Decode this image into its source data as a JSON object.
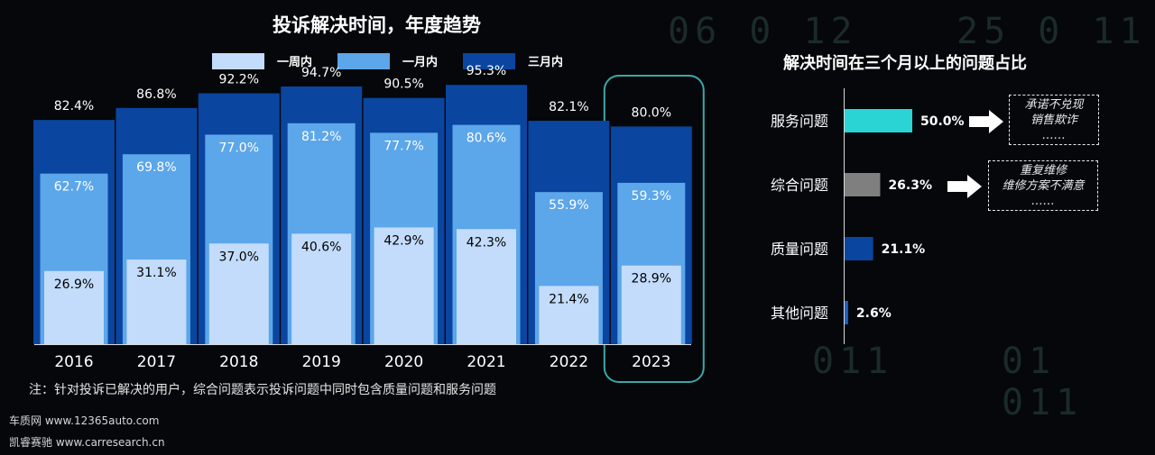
{
  "left_chart": {
    "title": "投诉解决时间，年度趋势",
    "legend": [
      {
        "label": "一周内",
        "color": "#c3dcfb"
      },
      {
        "label": "一月内",
        "color": "#5ca6ea"
      },
      {
        "label": "三月内",
        "color": "#0a45a0"
      }
    ],
    "highlight_category": "2023",
    "highlight_color": "#3aa8a8"
  },
  "right_chart": {
    "title": "解决时间在三个月以上的问题占比",
    "callouts": [
      {
        "lines": [
          "承诺不兑现",
          "销售欺诈",
          "……"
        ]
      },
      {
        "lines": [
          "重复维修",
          "维修方案不满意",
          "……"
        ]
      }
    ]
  },
  "note": "注：针对投诉已解决的用户，综合问题表示投诉问题中同时包含质量问题和服务问题",
  "sources": [
    "车质网 www.12365auto.com",
    "凯睿赛驰 www.carresearch.cn"
  ],
  "chart_data": [
    {
      "type": "bar",
      "title": "投诉解决时间，年度趋势",
      "categories": [
        "2016",
        "2017",
        "2018",
        "2019",
        "2020",
        "2021",
        "2022",
        "2023"
      ],
      "series": [
        {
          "name": "三月内",
          "values": [
            82.4,
            86.8,
            92.2,
            94.7,
            90.5,
            95.3,
            82.1,
            80.0
          ],
          "labels": [
            "82.4%",
            "86.8%",
            "92.2%",
            "94.7%",
            "90.5%",
            "95.3%",
            "82.1%",
            "80.0%"
          ]
        },
        {
          "name": "一月内",
          "values": [
            62.7,
            69.8,
            77.0,
            81.2,
            77.7,
            80.6,
            55.9,
            59.3
          ],
          "labels": [
            "62.7%",
            "69.8%",
            "77.0%",
            "81.2%",
            "77.7%",
            "80.6%",
            "55.9%",
            "59.3%"
          ]
        },
        {
          "name": "一周内",
          "values": [
            26.9,
            31.1,
            37.0,
            40.6,
            42.9,
            42.3,
            21.4,
            28.9
          ],
          "labels": [
            "26.9%",
            "31.1%",
            "37.0%",
            "40.6%",
            "42.9%",
            "42.3%",
            "21.4%",
            "28.9%"
          ]
        }
      ],
      "ylim": [
        0,
        100
      ],
      "grid": false,
      "legend_position": "top"
    },
    {
      "type": "bar",
      "orientation": "horizontal",
      "title": "解决时间在三个月以上的问题占比",
      "categories": [
        "服务问题",
        "综合问题",
        "质量问题",
        "其他问题"
      ],
      "values": [
        50.0,
        26.3,
        21.1,
        2.6
      ],
      "labels": [
        "50.0%",
        "26.3%",
        "21.1%",
        "2.6%"
      ],
      "colors": [
        "#2ad4d4",
        "#7f7f7f",
        "#0a45a0",
        "#1f5fbf"
      ],
      "xlim": [
        0,
        100
      ]
    }
  ]
}
